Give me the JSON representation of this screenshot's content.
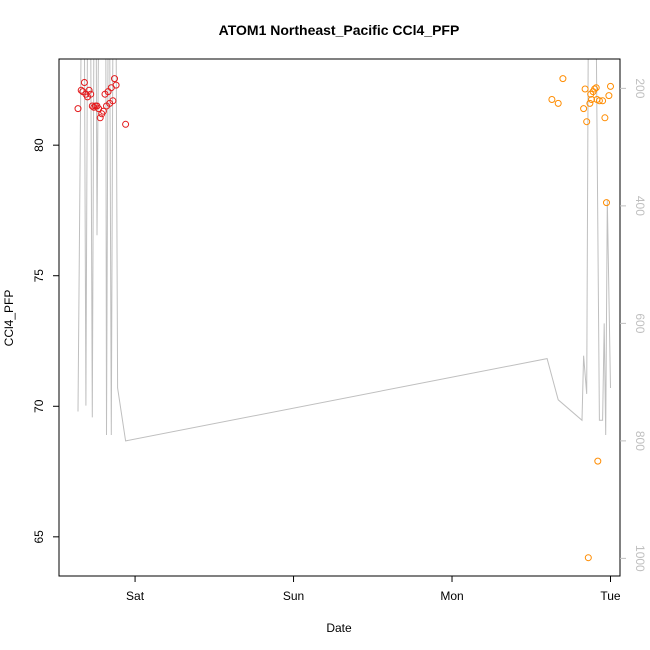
{
  "chart_data": {
    "type": "scatter",
    "title": "ATOM1 Northeast_Pacific CCl4_PFP",
    "xlabel": "Date",
    "ylabel": "CCl4_PFP",
    "x_axis": {
      "unit": "days",
      "range": [
        -0.48,
        3.06
      ],
      "ticks": [
        {
          "value": 0,
          "label": "Sat"
        },
        {
          "value": 1,
          "label": "Sun"
        },
        {
          "value": 2,
          "label": "Mon"
        },
        {
          "value": 3,
          "label": "Tue"
        }
      ]
    },
    "y_axis": {
      "range": [
        63.5,
        83.3
      ],
      "ticks": [
        65,
        70,
        75,
        80
      ]
    },
    "y2_axis": {
      "range": [
        1030,
        150
      ],
      "ticks": [
        200,
        400,
        600,
        800,
        1000
      ],
      "color": "#bfbfbf",
      "reversed": true
    },
    "series": [
      {
        "color": "#e31a1c",
        "marker": "open-circle",
        "points": [
          [
            -0.36,
            81.4
          ],
          [
            -0.34,
            82.1
          ],
          [
            -0.33,
            82.05
          ],
          [
            -0.32,
            82.4
          ],
          [
            -0.31,
            81.95
          ],
          [
            -0.3,
            81.85
          ],
          [
            -0.29,
            82.1
          ],
          [
            -0.28,
            81.95
          ],
          [
            -0.27,
            81.5
          ],
          [
            -0.26,
            81.45
          ],
          [
            -0.25,
            81.5
          ],
          [
            -0.24,
            81.5
          ],
          [
            -0.23,
            81.4
          ],
          [
            -0.22,
            81.05
          ],
          [
            -0.21,
            81.2
          ],
          [
            -0.2,
            81.3
          ],
          [
            -0.19,
            81.95
          ],
          [
            -0.18,
            81.5
          ],
          [
            -0.17,
            82.05
          ],
          [
            -0.16,
            81.6
          ],
          [
            -0.15,
            82.2
          ],
          [
            -0.14,
            81.7
          ],
          [
            -0.13,
            82.55
          ],
          [
            -0.12,
            82.3
          ],
          [
            -0.06,
            80.8
          ]
        ]
      },
      {
        "color": "#ff8c00",
        "marker": "open-circle",
        "points": [
          [
            2.63,
            81.75
          ],
          [
            2.67,
            81.6
          ],
          [
            2.7,
            82.55
          ],
          [
            2.83,
            81.4
          ],
          [
            2.84,
            82.15
          ],
          [
            2.85,
            80.9
          ],
          [
            2.86,
            64.2
          ],
          [
            2.87,
            81.6
          ],
          [
            2.875,
            81.95
          ],
          [
            2.88,
            81.75
          ],
          [
            2.89,
            82.05
          ],
          [
            2.9,
            82.15
          ],
          [
            2.91,
            82.2
          ],
          [
            2.915,
            81.75
          ],
          [
            2.92,
            67.9
          ],
          [
            2.93,
            81.7
          ],
          [
            2.95,
            81.7
          ],
          [
            2.965,
            81.05
          ],
          [
            2.975,
            77.8
          ],
          [
            2.99,
            81.9
          ],
          [
            3.0,
            82.25
          ]
        ]
      },
      {
        "color": "#bfbfbf",
        "type": "line",
        "axis": "y2",
        "points": [
          [
            -0.36,
            750
          ],
          [
            -0.34,
            100
          ],
          [
            -0.32,
            100
          ],
          [
            -0.31,
            740
          ],
          [
            -0.3,
            100
          ],
          [
            -0.28,
            100
          ],
          [
            -0.27,
            760
          ],
          [
            -0.26,
            100
          ],
          [
            -0.245,
            100
          ],
          [
            -0.24,
            450
          ],
          [
            -0.23,
            100
          ],
          [
            -0.21,
            100
          ],
          [
            -0.2,
            100
          ],
          [
            -0.185,
            100
          ],
          [
            -0.18,
            790
          ],
          [
            -0.17,
            100
          ],
          [
            -0.16,
            100
          ],
          [
            -0.15,
            790
          ],
          [
            -0.14,
            100
          ],
          [
            -0.12,
            100
          ],
          [
            -0.11,
            710
          ],
          [
            -0.06,
            800
          ],
          [
            2.6,
            660
          ],
          [
            2.67,
            730
          ],
          [
            2.82,
            765
          ],
          [
            2.83,
            655
          ],
          [
            2.85,
            720
          ],
          [
            2.86,
            100
          ],
          [
            2.88,
            100
          ],
          [
            2.9,
            100
          ],
          [
            2.91,
            100
          ],
          [
            2.93,
            765
          ],
          [
            2.95,
            765
          ],
          [
            2.96,
            600
          ],
          [
            2.97,
            790
          ],
          [
            2.98,
            390
          ],
          [
            3.0,
            710
          ]
        ]
      }
    ],
    "grid": false
  }
}
